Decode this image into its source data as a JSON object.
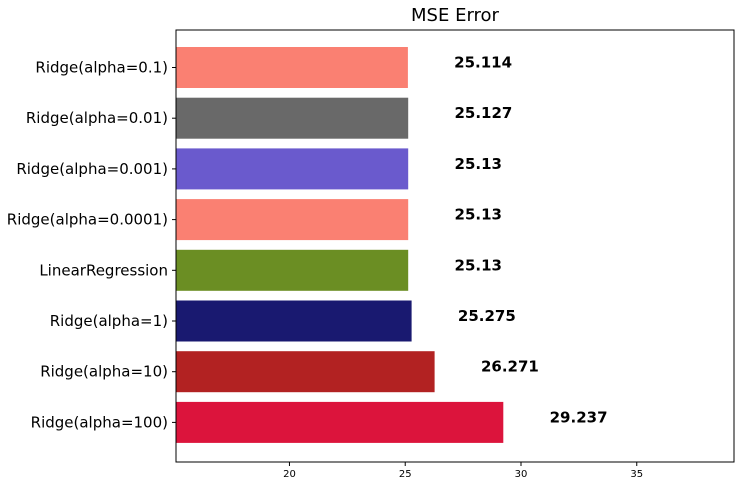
{
  "chart_data": {
    "type": "bar",
    "orientation": "horizontal",
    "title": "MSE Error",
    "xlabel": "",
    "ylabel": "",
    "categories": [
      "Ridge(alpha=0.1)",
      "Ridge(alpha=0.01)",
      "Ridge(alpha=0.001)",
      "Ridge(alpha=0.0001)",
      "LinearRegression",
      "Ridge(alpha=1)",
      "Ridge(alpha=10)",
      "Ridge(alpha=100)"
    ],
    "values": [
      25.114,
      25.127,
      25.13,
      25.13,
      25.13,
      25.275,
      26.271,
      29.237
    ],
    "value_labels": [
      "25.114",
      "25.127",
      "25.13",
      "25.13",
      "25.13",
      "25.275",
      "26.271",
      "29.237"
    ],
    "colors": [
      "#fa8072",
      "#696969",
      "#6a5acd",
      "#fa8072",
      "#6b8e23",
      "#191970",
      "#b22222",
      "#dc143c"
    ],
    "xlim": [
      15.1,
      39.2
    ],
    "xticks": [
      20,
      25,
      30,
      35
    ],
    "xtick_labels": [
      "20",
      "25",
      "30",
      "35"
    ],
    "grid": false,
    "legend": "none"
  }
}
